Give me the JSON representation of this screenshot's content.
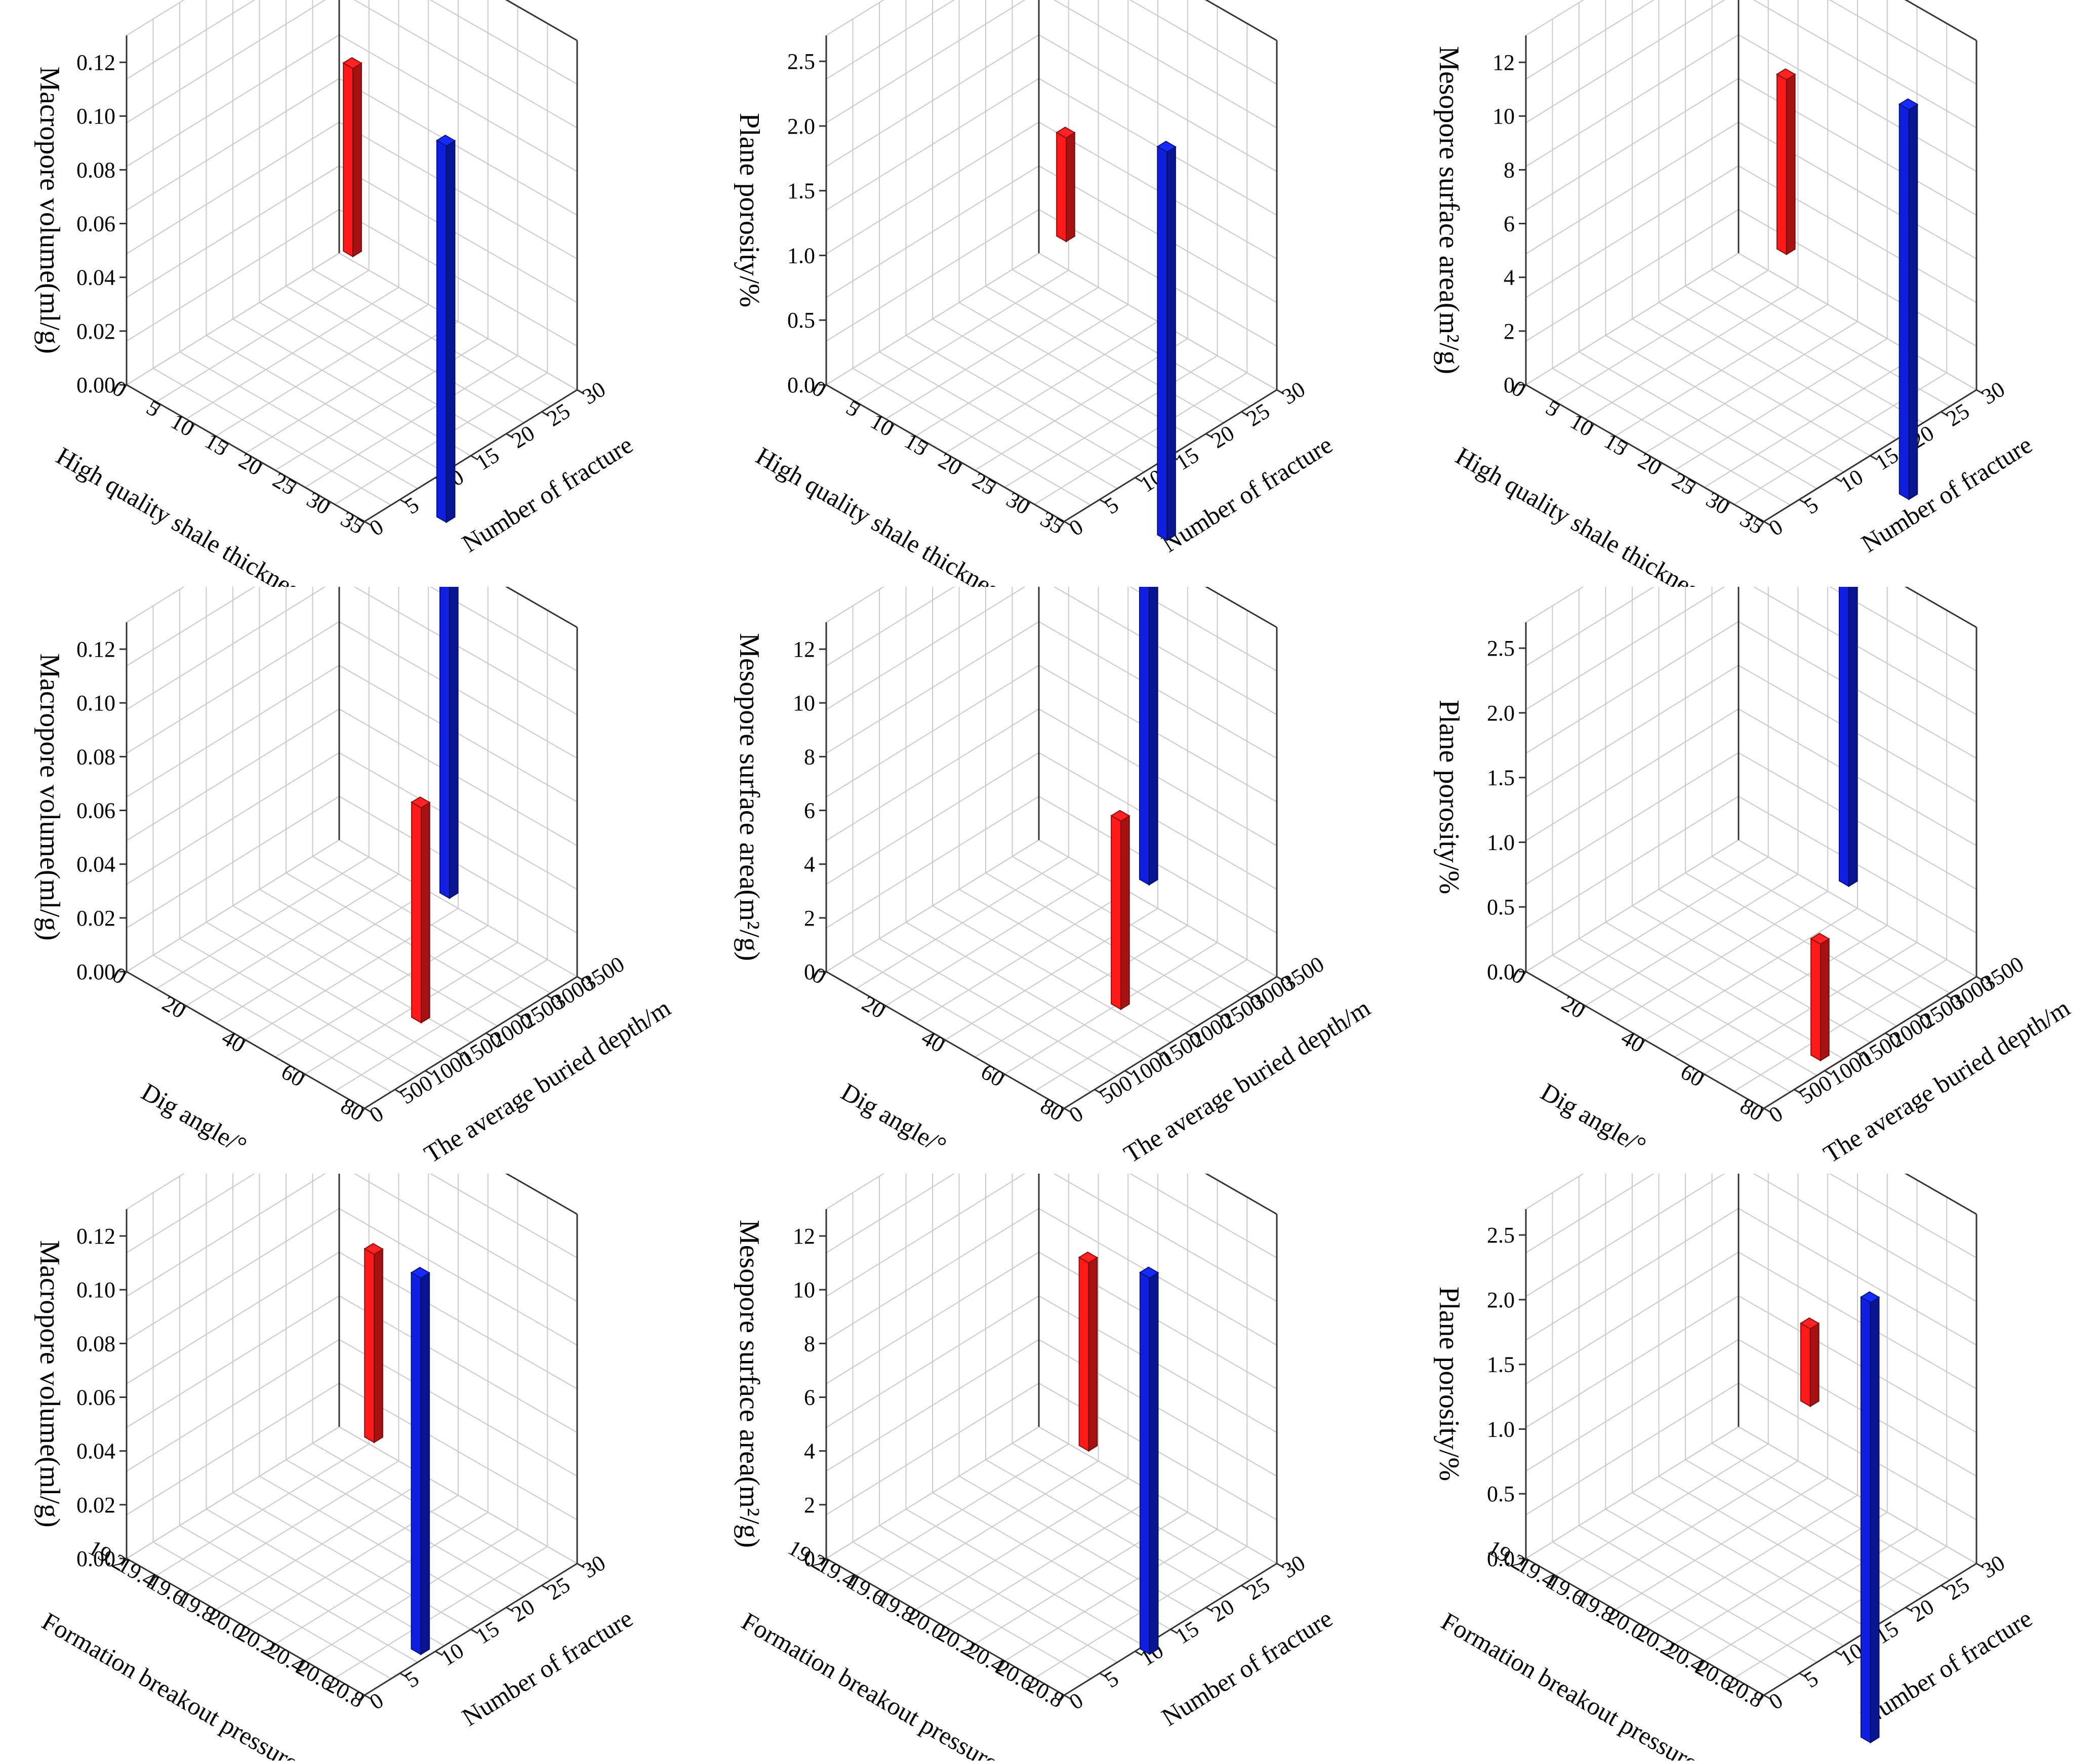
{
  "colors": {
    "red": "#ff1a1a",
    "blue": "#1020e0",
    "grid": "#c9c9c9",
    "axis": "#333333"
  },
  "chart_data": [
    {
      "type": "bar3d",
      "zlabel": "Macropore volume(ml/g)",
      "xlabel": "High quality shale thickness/m",
      "ylabel": "Number of fracture",
      "zticks": [
        "0.00",
        "0.02",
        "0.04",
        "0.06",
        "0.08",
        "0.10",
        "0.12"
      ],
      "zlim": [
        0,
        0.13
      ],
      "xticks": [
        "0",
        "5",
        "10",
        "15",
        "20",
        "25",
        "30",
        "35"
      ],
      "xlim": [
        0,
        35
      ],
      "yticks": [
        "0",
        "5",
        "10",
        "15",
        "20",
        "25",
        "30"
      ],
      "ylim": [
        0,
        30
      ],
      "bars": [
        {
          "color": "red",
          "x": 10,
          "y": 21,
          "z0": 0.03,
          "z1": 0.1
        },
        {
          "color": "blue",
          "x": 30,
          "y": 15,
          "z0": -0.03,
          "z1": 0.11
        }
      ]
    },
    {
      "type": "bar3d",
      "zlabel": "Plane porosity/%",
      "xlabel": "High quality shale thickness/m",
      "ylabel": "Number of fracture",
      "zticks": [
        "0.0",
        "0.5",
        "1.0",
        "1.5",
        "2.0",
        "2.5"
      ],
      "zlim": [
        0,
        2.7
      ],
      "xticks": [
        "0",
        "5",
        "10",
        "15",
        "20",
        "25",
        "30",
        "35"
      ],
      "xlim": [
        0,
        35
      ],
      "yticks": [
        "0",
        "5",
        "10",
        "15",
        "20",
        "25",
        "30"
      ],
      "ylim": [
        0,
        30
      ],
      "bars": [
        {
          "color": "red",
          "x": 12,
          "y": 21,
          "z0": 0.8,
          "z1": 1.6
        },
        {
          "color": "blue",
          "x": 31,
          "y": 17,
          "z0": -0.8,
          "z1": 2.2
        }
      ]
    },
    {
      "type": "bar3d",
      "zlabel": "Mesopore surface area(m²/g)",
      "xlabel": "High quality shale thickness/m",
      "ylabel": "Number of fracture",
      "zticks": [
        "0",
        "2",
        "4",
        "6",
        "8",
        "10",
        "12"
      ],
      "zlim": [
        0,
        13
      ],
      "xticks": [
        "0",
        "5",
        "10",
        "15",
        "20",
        "25",
        "30",
        "35"
      ],
      "xlim": [
        0,
        35
      ],
      "yticks": [
        "0",
        "5",
        "10",
        "15",
        "20",
        "25",
        "30"
      ],
      "ylim": [
        0,
        30
      ],
      "bars": [
        {
          "color": "red",
          "x": 14,
          "y": 22,
          "z0": 3.5,
          "z1": 10
        },
        {
          "color": "blue",
          "x": 32,
          "y": 22,
          "z0": -3,
          "z1": 11.5
        }
      ]
    },
    {
      "type": "bar3d",
      "zlabel": "Macropore volume(ml/g)",
      "xlabel": "Dig angle/°",
      "ylabel": "The average buried depth/m",
      "zticks": [
        "0.00",
        "0.02",
        "0.04",
        "0.06",
        "0.08",
        "0.10",
        "0.12"
      ],
      "zlim": [
        0,
        0.13
      ],
      "xticks": [
        "0",
        "20",
        "40",
        "60",
        "80"
      ],
      "xlim": [
        0,
        80
      ],
      "yticks": [
        "0",
        "500",
        "1000",
        "1500",
        "2000",
        "2500",
        "3000",
        "3500"
      ],
      "ylim": [
        0,
        3500
      ],
      "bars": [
        {
          "color": "blue",
          "x": 40,
          "y": 3200,
          "z0": 0.01,
          "z1": 0.135
        },
        {
          "color": "red",
          "x": 55,
          "y": 2000,
          "z0": -0.01,
          "z1": 0.07
        }
      ]
    },
    {
      "type": "bar3d",
      "zlabel": "Mesopore surface area(m²/g)",
      "xlabel": "Dig angle/°",
      "ylabel": "The average buried depth/m",
      "zticks": [
        "0",
        "2",
        "4",
        "6",
        "8",
        "10",
        "12"
      ],
      "zlim": [
        0,
        13
      ],
      "xticks": [
        "0",
        "20",
        "40",
        "60",
        "80"
      ],
      "xlim": [
        0,
        80
      ],
      "yticks": [
        "0",
        "500",
        "1000",
        "1500",
        "2000",
        "2500",
        "3000",
        "3500"
      ],
      "ylim": [
        0,
        3500
      ],
      "bars": [
        {
          "color": "blue",
          "x": 40,
          "y": 3200,
          "z0": 1.5,
          "z1": 14
        },
        {
          "color": "red",
          "x": 55,
          "y": 2000,
          "z0": -0.5,
          "z1": 6.5
        }
      ]
    },
    {
      "type": "bar3d",
      "zlabel": "Plane porosity/%",
      "xlabel": "Dig angle/°",
      "ylabel": "The average buried depth/m",
      "zticks": [
        "0.0",
        "0.5",
        "1.0",
        "1.5",
        "2.0",
        "2.5"
      ],
      "zlim": [
        0,
        2.7
      ],
      "xticks": [
        "0",
        "20",
        "40",
        "60",
        "80"
      ],
      "xlim": [
        0,
        80
      ],
      "yticks": [
        "0",
        "500",
        "1000",
        "1500",
        "2000",
        "2500",
        "3000",
        "3500"
      ],
      "ylim": [
        0,
        3500
      ],
      "bars": [
        {
          "color": "blue",
          "x": 40,
          "y": 3200,
          "z0": 0.3,
          "z1": 2.7
        },
        {
          "color": "red",
          "x": 55,
          "y": 2000,
          "z0": -0.5,
          "z1": 0.4
        }
      ]
    },
    {
      "type": "bar3d",
      "zlabel": "Macropore volume(ml/g)",
      "xlabel": "Formation breakout pressure/MPa",
      "ylabel": "Number of fracture",
      "zticks": [
        "0.00",
        "0.02",
        "0.04",
        "0.06",
        "0.08",
        "0.10",
        "0.12"
      ],
      "zlim": [
        0,
        0.13
      ],
      "xticks": [
        "19.2",
        "19.4",
        "19.6",
        "19.8",
        "20.0",
        "20.2",
        "20.4",
        "20.6",
        "20.8"
      ],
      "xlim": [
        19.2,
        20.8
      ],
      "yticks": [
        "0",
        "5",
        "10",
        "15",
        "20",
        "25",
        "30"
      ],
      "ylim": [
        0,
        30
      ],
      "bars": [
        {
          "color": "red",
          "x": 19.8,
          "y": 21,
          "z0": 0.03,
          "z1": 0.1
        },
        {
          "color": "blue",
          "x": 20.4,
          "y": 15,
          "z0": -0.02,
          "z1": 0.12
        }
      ]
    },
    {
      "type": "bar3d",
      "zlabel": "Mesopore surface area(m²/g)",
      "xlabel": "Formation breakout pressure/MPa",
      "ylabel": "Number of fracture",
      "zticks": [
        "0",
        "2",
        "4",
        "6",
        "8",
        "10",
        "12"
      ],
      "zlim": [
        0,
        13
      ],
      "xticks": [
        "19.2",
        "19.4",
        "19.6",
        "19.8",
        "20.0",
        "20.2",
        "20.4",
        "20.6",
        "20.8"
      ],
      "xlim": [
        19.2,
        20.8
      ],
      "yticks": [
        "0",
        "5",
        "10",
        "15",
        "20",
        "25",
        "30"
      ],
      "ylim": [
        0,
        30
      ],
      "bars": [
        {
          "color": "red",
          "x": 19.9,
          "y": 21,
          "z0": 3,
          "z1": 10
        },
        {
          "color": "blue",
          "x": 20.5,
          "y": 17,
          "z0": -2,
          "z1": 12
        }
      ]
    },
    {
      "type": "bar3d",
      "zlabel": "Plane porosity/%",
      "xlabel": "Formation breakout pressure/MPa",
      "ylabel": "Number of fracture",
      "zticks": [
        "0.0",
        "0.5",
        "1.0",
        "1.5",
        "2.0",
        "2.5"
      ],
      "zlim": [
        0,
        2.7
      ],
      "xticks": [
        "19.2",
        "19.4",
        "19.6",
        "19.8",
        "20.0",
        "20.2",
        "20.4",
        "20.6",
        "20.8"
      ],
      "xlim": [
        19.2,
        20.8
      ],
      "yticks": [
        "0",
        "5",
        "10",
        "15",
        "20",
        "25",
        "30"
      ],
      "ylim": [
        0,
        30
      ],
      "bars": [
        {
          "color": "red",
          "x": 20.0,
          "y": 22,
          "z0": 1.0,
          "z1": 1.6
        },
        {
          "color": "blue",
          "x": 20.5,
          "y": 20,
          "z0": -1.2,
          "z1": 2.2
        }
      ]
    }
  ]
}
